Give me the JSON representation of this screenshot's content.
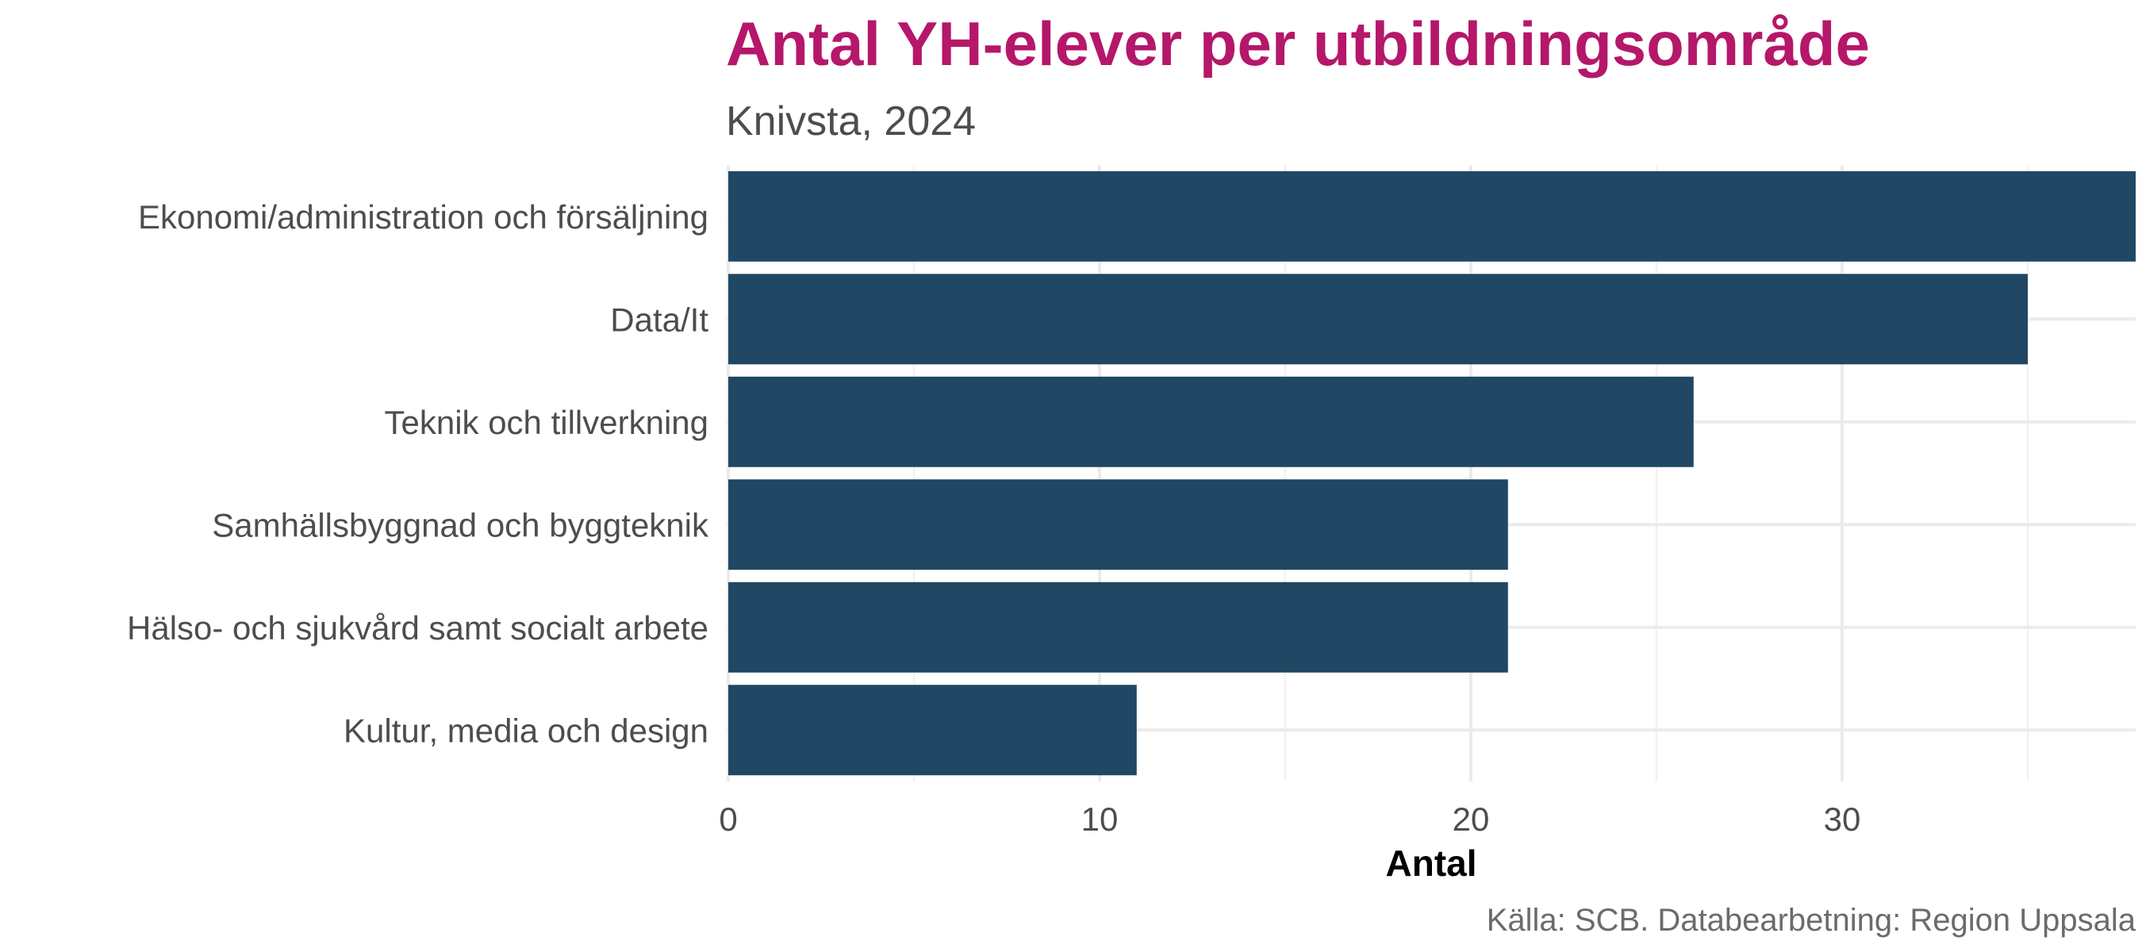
{
  "colors": {
    "title": "#B5176A",
    "bar": "#204763",
    "text": "#4d4d4d",
    "caption": "#6b6b6b"
  },
  "chart_data": {
    "type": "bar",
    "orientation": "horizontal",
    "title": "Antal YH-elever per utbildningsområde",
    "subtitle": "Knivsta, 2024",
    "categories": [
      "Ekonomi/administration och försäljning",
      "Data/It",
      "Teknik och tillverkning",
      "Samhällsbyggnad och byggteknik",
      "Hälso- och sjukvård samt socialt arbete",
      "Kultur, media och design"
    ],
    "values": [
      38,
      35,
      26,
      21,
      21,
      11
    ],
    "xlabel": "Antal",
    "ylabel": "",
    "xlim": [
      0,
      38
    ],
    "xticks": [
      0,
      10,
      20,
      30
    ],
    "grid": true,
    "legend": "none",
    "caption": "Källa: SCB. Databearbetning: Region Uppsala"
  }
}
